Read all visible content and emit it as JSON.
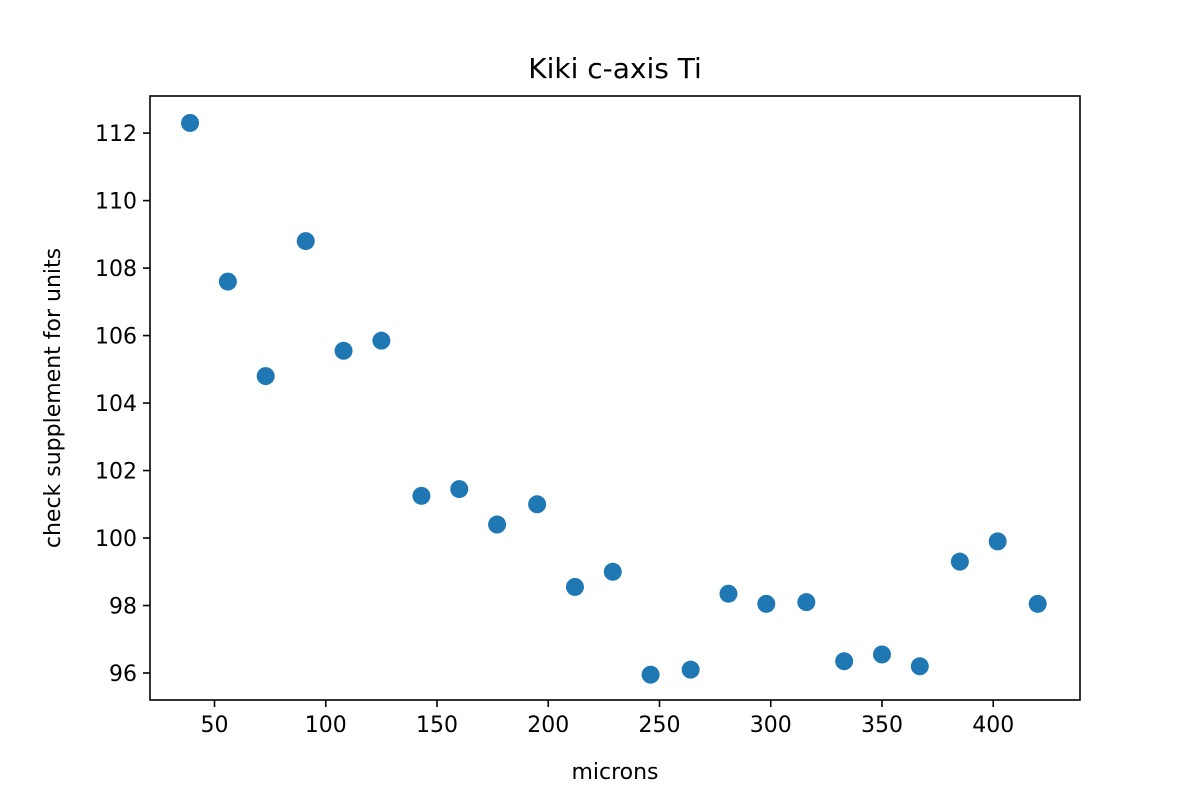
{
  "chart_data": {
    "type": "scatter",
    "title": "Kiki c-axis Ti",
    "xlabel": "microns",
    "ylabel": "check supplement for units",
    "xlim": [
      21,
      439
    ],
    "ylim": [
      95.2,
      113.1
    ],
    "xticks": [
      50,
      100,
      150,
      200,
      250,
      300,
      350,
      400
    ],
    "yticks": [
      96,
      98,
      100,
      102,
      104,
      106,
      108,
      110,
      112
    ],
    "grid": false,
    "marker_color": "#1f77b4",
    "series": [
      {
        "x": [
          39,
          56,
          73,
          91,
          108,
          125,
          143,
          160,
          177,
          195,
          212,
          229,
          246,
          264,
          281,
          298,
          316,
          333,
          350,
          367,
          385,
          402,
          420
        ],
        "y": [
          112.3,
          107.6,
          104.8,
          108.8,
          105.55,
          105.85,
          101.25,
          101.45,
          100.4,
          101.0,
          98.55,
          99.0,
          95.95,
          96.1,
          98.35,
          98.05,
          98.1,
          96.35,
          96.55,
          96.2,
          99.3,
          99.9,
          98.05
        ]
      }
    ]
  }
}
